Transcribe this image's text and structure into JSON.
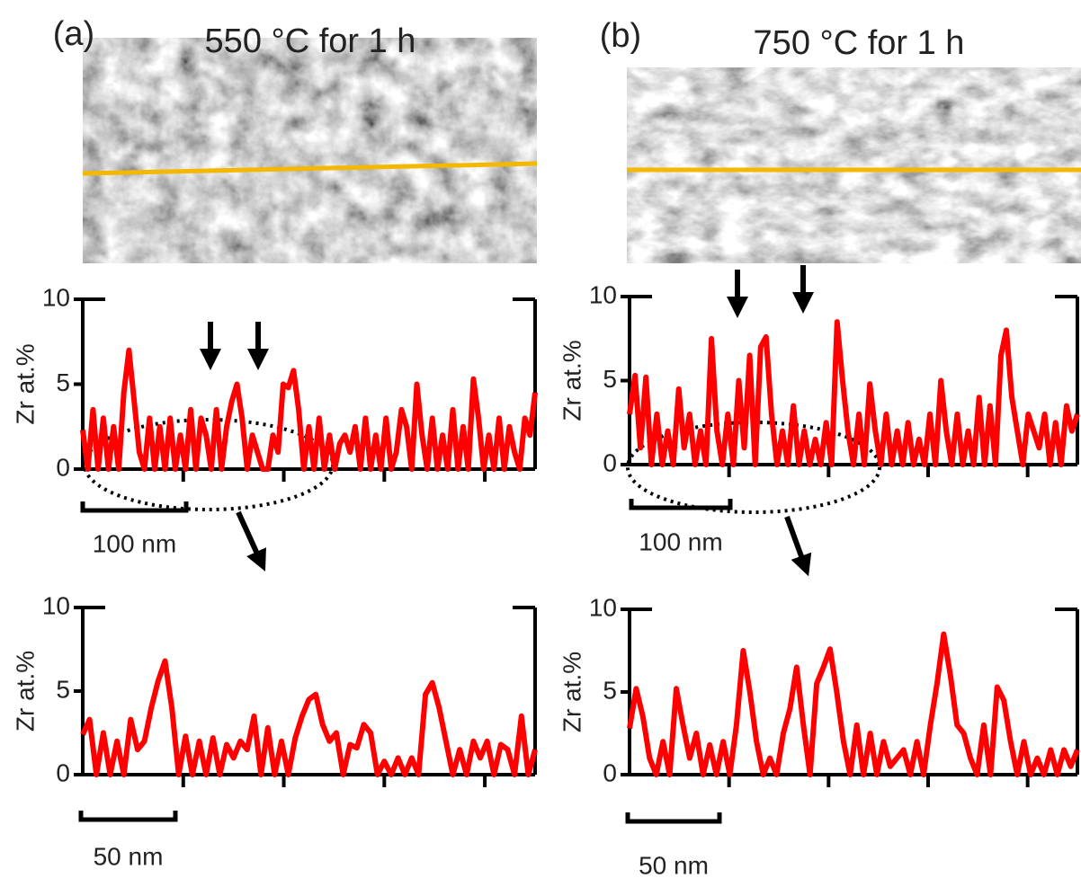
{
  "chart_data": [
    {
      "type": "line",
      "panel_label": "(a)",
      "title": "550 °C for 1 h",
      "ylabel": "Zr  at.%",
      "scale_bar": "100 nm",
      "ylim": [
        0,
        10
      ],
      "yticks": [
        0,
        5,
        10
      ],
      "series": [
        {
          "color": "#ff0000",
          "values": [
            2.3,
            0,
            3.5,
            0,
            3,
            0,
            2.5,
            0,
            4.5,
            7,
            4,
            1,
            0,
            3,
            0,
            2.5,
            0,
            3,
            0,
            2,
            0,
            3.5,
            0,
            3,
            2,
            0,
            3.5,
            0,
            2.5,
            4,
            5,
            3,
            0,
            2,
            1,
            0,
            0,
            2,
            1,
            5,
            4.8,
            5.8,
            3.5,
            0,
            2.5,
            0,
            3,
            0,
            2,
            0,
            1.5,
            2,
            1,
            2.5,
            0,
            3,
            0,
            2,
            0,
            3,
            0,
            1,
            3.5,
            2.5,
            0,
            5,
            2,
            0,
            3,
            0,
            2,
            0,
            3.5,
            0,
            2.5,
            0,
            5.3,
            3,
            0,
            2,
            0,
            3,
            0,
            2.5,
            1,
            0,
            3,
            2,
            4.5
          ]
        }
      ]
    },
    {
      "type": "line",
      "panel_label": "(b)",
      "title": "750 °C for 1 h",
      "ylabel": "Zr  at.%",
      "scale_bar": "100 nm",
      "ylim": [
        0,
        10
      ],
      "yticks": [
        0,
        5,
        10
      ],
      "series": [
        {
          "color": "#ff0000",
          "values": [
            3,
            5.3,
            1,
            5.2,
            0,
            3,
            0,
            2,
            0,
            4.5,
            1,
            3,
            0,
            2,
            0,
            7.5,
            2,
            0,
            3,
            0,
            5,
            1,
            6.5,
            0,
            7,
            7.6,
            3,
            0,
            2,
            0,
            3.5,
            0,
            2,
            0,
            1.5,
            0,
            2.5,
            0,
            8.5,
            5,
            2,
            0,
            3,
            0,
            4.8,
            2,
            0,
            3,
            0,
            2,
            0,
            2.5,
            0,
            1.5,
            0,
            3,
            0,
            5,
            2,
            0,
            3,
            0,
            2,
            0,
            4,
            0,
            3.5,
            0,
            6.5,
            8,
            4,
            2,
            0,
            3,
            2,
            1,
            3,
            0,
            2.5,
            0,
            3.5,
            2,
            3
          ]
        }
      ]
    },
    {
      "type": "line",
      "ylabel": "Zr  at.%",
      "scale_bar": "50 nm",
      "ylim": [
        0,
        10
      ],
      "yticks": [
        0,
        5,
        10
      ],
      "series": [
        {
          "color": "#ff0000",
          "values": [
            2.4,
            3.3,
            0,
            2.5,
            0,
            2,
            0,
            3.3,
            1.5,
            2,
            4,
            5.6,
            6.8,
            4,
            0,
            2.3,
            0,
            2,
            0,
            2.2,
            0,
            1.8,
            1,
            2,
            1.5,
            3.5,
            0,
            2.8,
            0,
            2,
            0,
            2.2,
            3.5,
            4.5,
            4.8,
            3,
            2,
            2.5,
            0,
            1.8,
            1.6,
            3,
            2.5,
            0,
            0.8,
            0,
            1,
            0,
            1,
            0,
            4.8,
            5.5,
            4,
            2,
            0,
            1.5,
            0,
            2,
            1,
            2,
            0,
            1.8,
            1.5,
            0,
            3.5,
            0,
            1.5
          ]
        }
      ]
    },
    {
      "type": "line",
      "ylabel": "Zr  at.%",
      "scale_bar": "50 nm",
      "ylim": [
        0,
        10
      ],
      "yticks": [
        0,
        5,
        10
      ],
      "series": [
        {
          "color": "#ff0000",
          "values": [
            2.8,
            5.2,
            3.5,
            1,
            0,
            2,
            0,
            5.2,
            3,
            1,
            2.5,
            0,
            1.8,
            0,
            2,
            0,
            3,
            7.5,
            5,
            2,
            0,
            1,
            0,
            2.5,
            4,
            6.5,
            3,
            0,
            5.5,
            6.5,
            7.6,
            5,
            2,
            0,
            3,
            0,
            2.5,
            0,
            2,
            0.5,
            1,
            1.5,
            0,
            2,
            0,
            3,
            5.5,
            8.5,
            6,
            3,
            2.5,
            1,
            0,
            3,
            0,
            5.3,
            4.5,
            2,
            0,
            2,
            0,
            1,
            0,
            1.5,
            0,
            1.5,
            0.5,
            1.5
          ]
        }
      ]
    }
  ]
}
